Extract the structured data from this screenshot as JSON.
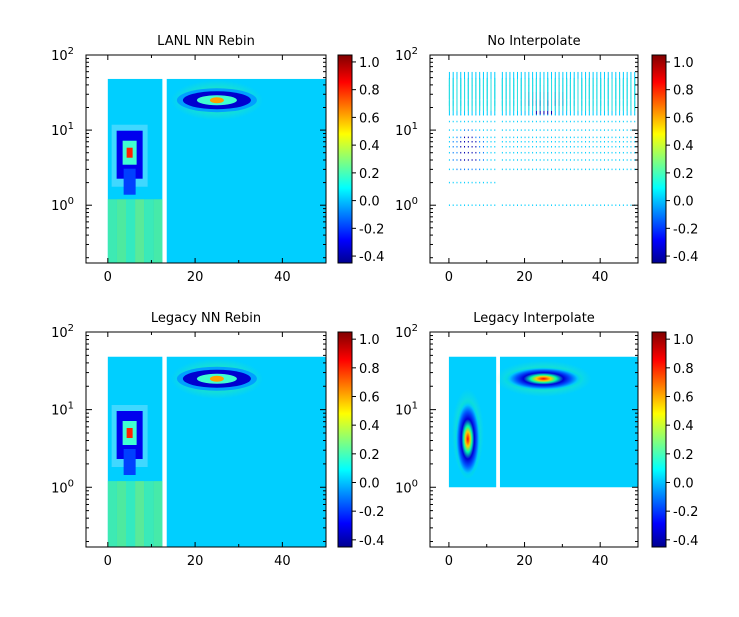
{
  "chart_data": [
    {
      "type": "heatmap",
      "title": "LANL NN Rebin",
      "xlim": [
        -5,
        50
      ],
      "ylim_log": [
        0.17,
        100
      ],
      "xticks": [
        "0",
        "20",
        "40"
      ],
      "yticks": [
        {
          "base": "10",
          "exp": "0"
        },
        {
          "base": "10",
          "exp": "1"
        },
        {
          "base": "10",
          "exp": "2"
        }
      ],
      "colorbar": {
        "range": [
          -0.45,
          1.05
        ],
        "ticks": [
          "-0.4",
          "-0.2",
          "0.0",
          "0.2",
          "0.4",
          "0.6",
          "0.8",
          "1.0"
        ]
      },
      "panels": [
        {
          "x": [
            0,
            12.5
          ],
          "y": [
            0.17,
            48
          ],
          "background": 0.02
        },
        {
          "x": [
            13.5,
            50
          ],
          "y": [
            0.17,
            48
          ],
          "background": 0.02
        }
      ],
      "features": [
        {
          "kind": "blob",
          "x": 5,
          "y": 5,
          "peak": 1.0,
          "note": "ring -0.4 around peak"
        },
        {
          "kind": "blob",
          "x": 25,
          "y": 25,
          "peak": 1.0,
          "note": "ring -0.4 around peak"
        }
      ]
    },
    {
      "type": "heatmap",
      "title": "No Interpolate",
      "xlim": [
        -5,
        50
      ],
      "ylim_log": [
        0.17,
        100
      ],
      "xticks": [
        "0",
        "20",
        "40"
      ],
      "yticks": [
        {
          "base": "10",
          "exp": "0"
        },
        {
          "base": "10",
          "exp": "1"
        },
        {
          "base": "10",
          "exp": "2"
        }
      ],
      "colorbar": {
        "range": [
          -0.45,
          1.05
        ],
        "ticks": [
          "-0.4",
          "-0.2",
          "0.0",
          "0.2",
          "0.4",
          "0.6",
          "0.8",
          "1.0"
        ]
      },
      "sparse_points": true
    },
    {
      "type": "heatmap",
      "title": "Legacy NN Rebin",
      "xlim": [
        -5,
        50
      ],
      "ylim_log": [
        0.17,
        100
      ],
      "xticks": [
        "0",
        "20",
        "40"
      ],
      "yticks": [
        {
          "base": "10",
          "exp": "0"
        },
        {
          "base": "10",
          "exp": "1"
        },
        {
          "base": "10",
          "exp": "2"
        }
      ],
      "colorbar": {
        "range": [
          -0.45,
          1.05
        ],
        "ticks": [
          "-0.4",
          "-0.2",
          "0.0",
          "0.2",
          "0.4",
          "0.6",
          "0.8",
          "1.0"
        ]
      },
      "panels": [
        {
          "x": [
            0,
            12.5
          ],
          "y": [
            0.17,
            48
          ],
          "background": 0.02
        },
        {
          "x": [
            13.5,
            50
          ],
          "y": [
            0.17,
            48
          ],
          "background": 0.02
        }
      ]
    },
    {
      "type": "heatmap",
      "title": "Legacy Interpolate",
      "xlim": [
        -5,
        50
      ],
      "ylim_log": [
        0.17,
        100
      ],
      "xticks": [
        "0",
        "20",
        "40"
      ],
      "yticks": [
        {
          "base": "10",
          "exp": "0"
        },
        {
          "base": "10",
          "exp": "1"
        },
        {
          "base": "10",
          "exp": "2"
        }
      ],
      "colorbar": {
        "range": [
          -0.45,
          1.05
        ],
        "ticks": [
          "-0.4",
          "-0.2",
          "0.0",
          "0.2",
          "0.4",
          "0.6",
          "0.8",
          "1.0"
        ]
      },
      "panels": [
        {
          "x": [
            0,
            12.5
          ],
          "y": [
            1,
            48
          ],
          "background": 0.02
        },
        {
          "x": [
            13.5,
            50
          ],
          "y": [
            1,
            48
          ],
          "background": 0.02
        }
      ],
      "smooth": true
    }
  ]
}
